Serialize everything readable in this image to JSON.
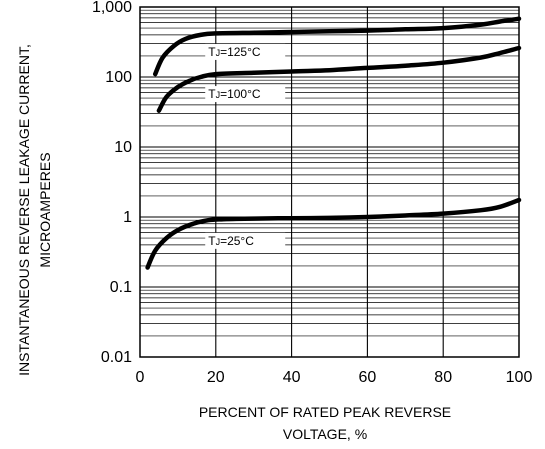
{
  "chart_data": {
    "type": "line",
    "title": "",
    "xlabel": [
      "PERCENT OF RATED PEAK REVERSE",
      "VOLTAGE, %"
    ],
    "ylabel": [
      "INSTANTANEOUS REVERSE LEAKAGE CURRENT,",
      "MICROAMPERES"
    ],
    "x_scale": "linear",
    "y_scale": "log",
    "xlim": [
      0,
      100
    ],
    "ylim": [
      0.01,
      1000
    ],
    "x_ticks": [
      "0",
      "20",
      "40",
      "60",
      "80",
      "100"
    ],
    "y_ticks": [
      "0.01",
      "0.1",
      "1",
      "10",
      "100",
      "1,000"
    ],
    "grid": true,
    "legend": "none (curves labeled inline)",
    "line_color": "#000000",
    "series": [
      {
        "label_prefix": "T",
        "label_sub": "J",
        "label_suffix": "=125°C",
        "x": [
          4,
          6,
          9,
          12,
          16,
          20,
          30,
          40,
          50,
          60,
          70,
          80,
          90,
          95,
          100
        ],
        "y": [
          110,
          190,
          280,
          350,
          400,
          420,
          430,
          440,
          450,
          460,
          480,
          500,
          560,
          620,
          680
        ]
      },
      {
        "label_prefix": "T",
        "label_sub": "J",
        "label_suffix": "=100°C",
        "x": [
          5,
          7,
          10,
          13,
          16,
          20,
          30,
          40,
          50,
          60,
          70,
          80,
          90,
          95,
          100
        ],
        "y": [
          33,
          52,
          72,
          88,
          100,
          110,
          115,
          120,
          125,
          135,
          145,
          160,
          190,
          220,
          260
        ]
      },
      {
        "label_prefix": "T",
        "label_sub": "J",
        "label_suffix": "=25°C",
        "x": [
          2,
          4,
          7,
          10,
          14,
          18,
          22,
          30,
          40,
          50,
          60,
          70,
          80,
          90,
          95,
          100
        ],
        "y": [
          0.19,
          0.33,
          0.5,
          0.65,
          0.8,
          0.9,
          0.93,
          0.95,
          0.96,
          0.97,
          1.0,
          1.05,
          1.12,
          1.25,
          1.4,
          1.75
        ]
      }
    ]
  }
}
